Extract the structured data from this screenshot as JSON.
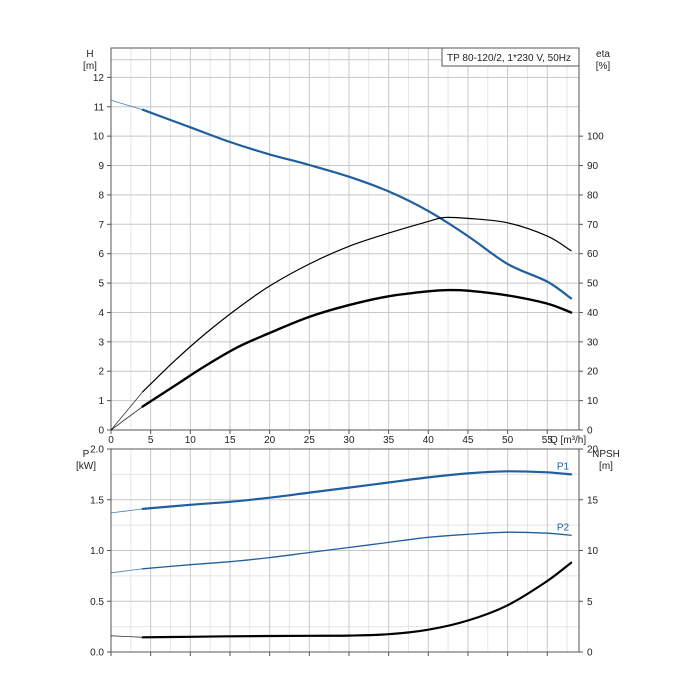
{
  "chart_data": [
    {
      "type": "line",
      "legend_box": "TP 80-120/2, 1*230 V, 50Hz",
      "xlabel": "Q [m³/h]",
      "ylabel_left": [
        "H",
        "[m]"
      ],
      "ylabel_right": [
        "eta",
        "[%]"
      ],
      "xlim": [
        0,
        59
      ],
      "ylim_left": [
        0,
        13
      ],
      "ylim_right": [
        0,
        130
      ],
      "x_ticks": [
        "0",
        "5",
        "10",
        "15",
        "20",
        "25",
        "30",
        "35",
        "40",
        "45",
        "50",
        "55"
      ],
      "y_ticks_left": [
        "0",
        "1",
        "2",
        "3",
        "4",
        "5",
        "6",
        "7",
        "8",
        "9",
        "10",
        "11",
        "12"
      ],
      "y_ticks_right": [
        "0",
        "10",
        "20",
        "30",
        "40",
        "50",
        "60",
        "70",
        "80",
        "90",
        "100"
      ],
      "series": [
        {
          "axis": "left",
          "color": "#1f5fa0",
          "extrapolated_start": [
            [
              0,
              11.22
            ],
            [
              4,
              10.9
            ]
          ],
          "points": [
            [
              4,
              10.9
            ],
            [
              10,
              10.3
            ],
            [
              15,
              9.8
            ],
            [
              20,
              9.38
            ],
            [
              25,
              9.02
            ],
            [
              30,
              8.62
            ],
            [
              35,
              8.12
            ],
            [
              40,
              7.45
            ],
            [
              45,
              6.6
            ],
            [
              50,
              5.65
            ],
            [
              55,
              5.05
            ],
            [
              58,
              4.48
            ]
          ]
        },
        {
          "axis": "right",
          "color": "#000000",
          "extrapolated_start": [
            [
              0,
              0
            ],
            [
              4,
              13
            ]
          ],
          "points": [
            [
              4,
              13
            ],
            [
              8,
              23.5
            ],
            [
              12,
              33
            ],
            [
              16,
              41.5
            ],
            [
              20,
              49
            ],
            [
              25,
              56.5
            ],
            [
              30,
              62.5
            ],
            [
              35,
              67
            ],
            [
              40,
              71
            ],
            [
              42,
              72.3
            ],
            [
              45,
              72
            ],
            [
              50,
              70.5
            ],
            [
              55,
              66
            ],
            [
              58,
              61
            ]
          ]
        },
        {
          "axis": "left",
          "color": "#000000",
          "extrapolated_start": [
            [
              0,
              0
            ],
            [
              4,
              0.8
            ]
          ],
          "points": [
            [
              4,
              0.8
            ],
            [
              8,
              1.5
            ],
            [
              12,
              2.2
            ],
            [
              16,
              2.82
            ],
            [
              20,
              3.3
            ],
            [
              25,
              3.85
            ],
            [
              30,
              4.25
            ],
            [
              35,
              4.55
            ],
            [
              40,
              4.72
            ],
            [
              42.5,
              4.76
            ],
            [
              45,
              4.74
            ],
            [
              50,
              4.58
            ],
            [
              55,
              4.3
            ],
            [
              58,
              4.0
            ]
          ]
        }
      ]
    },
    {
      "type": "line",
      "ylabel_left": [
        "P",
        "[kW]"
      ],
      "ylabel_right": [
        "NPSH",
        "[m]"
      ],
      "xlim": [
        0,
        59
      ],
      "ylim_left": [
        0,
        2.0
      ],
      "ylim_right": [
        0,
        20
      ],
      "y_ticks_left": [
        "0.0",
        "0.5",
        "1.0",
        "1.5",
        "2.0"
      ],
      "y_ticks_right": [
        "0",
        "5",
        "10",
        "15",
        "20"
      ],
      "series": [
        {
          "name": "P1",
          "axis": "left",
          "color": "#1f5fa0",
          "extrapolated_start": [
            [
              0,
              1.37
            ],
            [
              4,
              1.41
            ]
          ],
          "points": [
            [
              4,
              1.41
            ],
            [
              10,
              1.45
            ],
            [
              15,
              1.48
            ],
            [
              20,
              1.52
            ],
            [
              25,
              1.57
            ],
            [
              30,
              1.62
            ],
            [
              35,
              1.67
            ],
            [
              40,
              1.72
            ],
            [
              45,
              1.76
            ],
            [
              50,
              1.78
            ],
            [
              55,
              1.77
            ],
            [
              58,
              1.75
            ]
          ]
        },
        {
          "name": "P2",
          "axis": "left",
          "color": "#1f5fa0",
          "extrapolated_start": [
            [
              0,
              0.78
            ],
            [
              4,
              0.82
            ]
          ],
          "points": [
            [
              4,
              0.82
            ],
            [
              10,
              0.86
            ],
            [
              15,
              0.89
            ],
            [
              20,
              0.93
            ],
            [
              25,
              0.98
            ],
            [
              30,
              1.03
            ],
            [
              35,
              1.08
            ],
            [
              40,
              1.13
            ],
            [
              45,
              1.16
            ],
            [
              50,
              1.18
            ],
            [
              55,
              1.17
            ],
            [
              58,
              1.15
            ]
          ]
        },
        {
          "axis": "right",
          "color": "#000000",
          "extrapolated_start": [
            [
              0,
              1.6
            ],
            [
              4,
              1.45
            ]
          ],
          "points": [
            [
              4,
              1.45
            ],
            [
              10,
              1.5
            ],
            [
              15,
              1.55
            ],
            [
              20,
              1.58
            ],
            [
              25,
              1.6
            ],
            [
              30,
              1.62
            ],
            [
              35,
              1.75
            ],
            [
              40,
              2.2
            ],
            [
              45,
              3.1
            ],
            [
              50,
              4.6
            ],
            [
              55,
              7.0
            ],
            [
              58,
              8.8
            ]
          ]
        }
      ]
    }
  ]
}
